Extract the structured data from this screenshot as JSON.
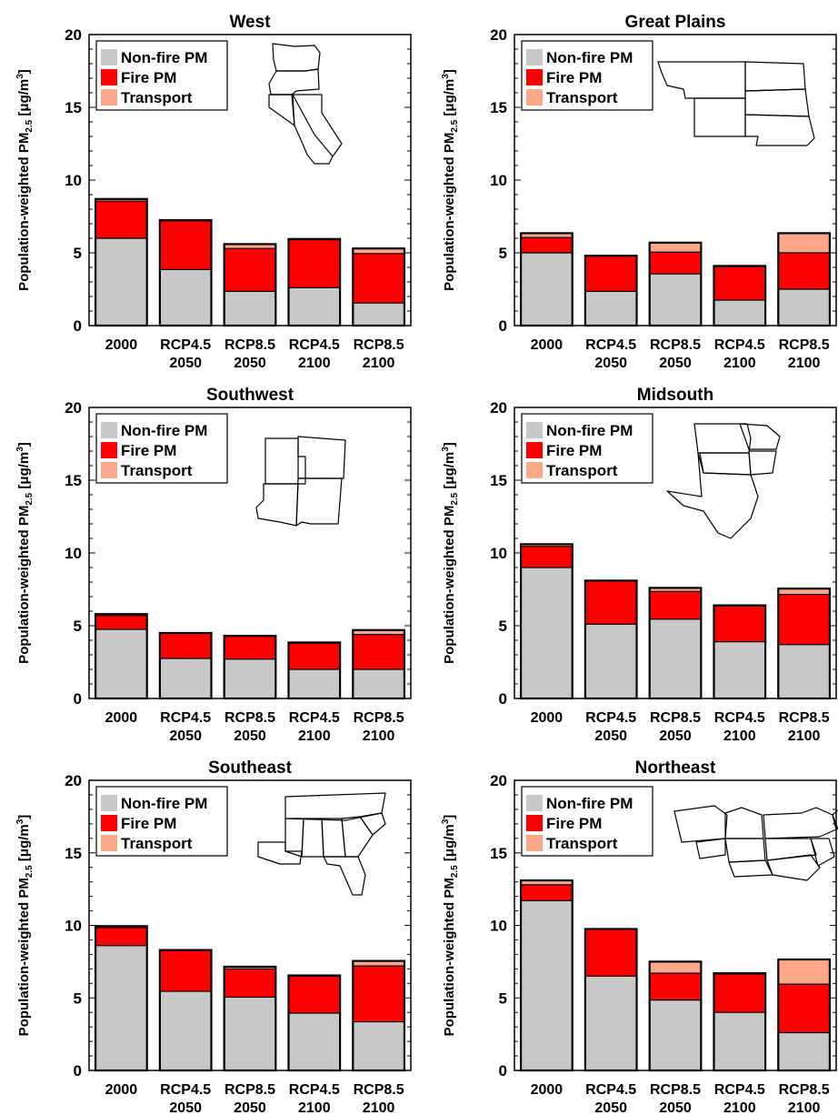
{
  "figure": {
    "ylabel_main": "Population-weighted PM",
    "ylabel_sub": "2.5",
    "ylabel_unit": " [μg/m",
    "ylabel_sup": "3",
    "ylabel_close": "]",
    "legend": [
      "Non-fire PM",
      "Fire PM",
      "Transport"
    ],
    "colors": {
      "nonfire": "#c8c8c8",
      "fire": "#ff0000",
      "transport": "#fca68a",
      "axis": "#000000"
    },
    "region_map_icons": [
      "west-map-icon",
      "great-plains-map-icon",
      "southwest-map-icon",
      "midsouth-map-icon",
      "southeast-map-icon",
      "northeast-map-icon"
    ]
  },
  "chart_data": [
    {
      "type": "bar",
      "stacked": true,
      "title": "West",
      "categories": [
        [
          "2000"
        ],
        [
          "RCP4.5",
          "2050"
        ],
        [
          "RCP8.5",
          "2050"
        ],
        [
          "RCP4.5",
          "2100"
        ],
        [
          "RCP8.5",
          "2100"
        ]
      ],
      "series": [
        {
          "name": "Non-fire PM",
          "values": [
            6.0,
            3.85,
            2.35,
            2.6,
            1.55
          ]
        },
        {
          "name": "Fire PM",
          "values": [
            2.55,
            3.35,
            2.95,
            3.3,
            3.4
          ]
        },
        {
          "name": "Transport",
          "values": [
            0.15,
            0.05,
            0.3,
            0.05,
            0.35
          ]
        }
      ],
      "ylim": [
        0,
        20
      ],
      "yticks": [
        0,
        5,
        10,
        15,
        20
      ],
      "legend_position": "top-left"
    },
    {
      "type": "bar",
      "stacked": true,
      "title": "Great Plains",
      "categories": [
        [
          "2000"
        ],
        [
          "RCP4.5",
          "2050"
        ],
        [
          "RCP8.5",
          "2050"
        ],
        [
          "RCP4.5",
          "2100"
        ],
        [
          "RCP8.5",
          "2100"
        ]
      ],
      "series": [
        {
          "name": "Non-fire PM",
          "values": [
            5.0,
            2.35,
            3.55,
            1.75,
            2.5
          ]
        },
        {
          "name": "Fire PM",
          "values": [
            1.05,
            2.45,
            1.5,
            2.3,
            2.5
          ]
        },
        {
          "name": "Transport",
          "values": [
            0.3,
            0.0,
            0.65,
            0.05,
            1.35
          ]
        }
      ],
      "ylim": [
        0,
        20
      ],
      "yticks": [
        0,
        5,
        10,
        15,
        20
      ],
      "legend_position": "top-left"
    },
    {
      "type": "bar",
      "stacked": true,
      "title": "Southwest",
      "categories": [
        [
          "2000"
        ],
        [
          "RCP4.5",
          "2050"
        ],
        [
          "RCP8.5",
          "2050"
        ],
        [
          "RCP4.5",
          "2100"
        ],
        [
          "RCP8.5",
          "2100"
        ]
      ],
      "series": [
        {
          "name": "Non-fire PM",
          "values": [
            4.75,
            2.75,
            2.7,
            2.0,
            2.0
          ]
        },
        {
          "name": "Fire PM",
          "values": [
            0.95,
            1.75,
            1.6,
            1.8,
            2.4
          ]
        },
        {
          "name": "Transport",
          "values": [
            0.1,
            0.0,
            0.0,
            0.05,
            0.3
          ]
        }
      ],
      "ylim": [
        0,
        20
      ],
      "yticks": [
        0,
        5,
        10,
        15,
        20
      ],
      "legend_position": "top-left"
    },
    {
      "type": "bar",
      "stacked": true,
      "title": "Midsouth",
      "categories": [
        [
          "2000"
        ],
        [
          "RCP4.5",
          "2050"
        ],
        [
          "RCP8.5",
          "2050"
        ],
        [
          "RCP4.5",
          "2100"
        ],
        [
          "RCP8.5",
          "2100"
        ]
      ],
      "series": [
        {
          "name": "Non-fire PM",
          "values": [
            9.0,
            5.1,
            5.45,
            3.9,
            3.7
          ]
        },
        {
          "name": "Fire PM",
          "values": [
            1.45,
            3.0,
            1.9,
            2.45,
            3.45
          ]
        },
        {
          "name": "Transport",
          "values": [
            0.15,
            0.0,
            0.25,
            0.05,
            0.4
          ]
        }
      ],
      "ylim": [
        0,
        20
      ],
      "yticks": [
        0,
        5,
        10,
        15,
        20
      ],
      "legend_position": "top-left"
    },
    {
      "type": "bar",
      "stacked": true,
      "title": "Southeast",
      "categories": [
        [
          "2000"
        ],
        [
          "RCP4.5",
          "2050"
        ],
        [
          "RCP8.5",
          "2050"
        ],
        [
          "RCP4.5",
          "2100"
        ],
        [
          "RCP8.5",
          "2100"
        ]
      ],
      "series": [
        {
          "name": "Non-fire PM",
          "values": [
            8.6,
            5.45,
            5.05,
            3.95,
            3.35
          ]
        },
        {
          "name": "Fire PM",
          "values": [
            1.25,
            2.85,
            1.95,
            2.55,
            3.85
          ]
        },
        {
          "name": "Transport",
          "values": [
            0.1,
            0.0,
            0.15,
            0.05,
            0.35
          ]
        }
      ],
      "ylim": [
        0,
        20
      ],
      "yticks": [
        0,
        5,
        10,
        15,
        20
      ],
      "legend_position": "top-left"
    },
    {
      "type": "bar",
      "stacked": true,
      "title": "Northeast",
      "categories": [
        [
          "2000"
        ],
        [
          "RCP4.5",
          "2050"
        ],
        [
          "RCP8.5",
          "2050"
        ],
        [
          "RCP4.5",
          "2100"
        ],
        [
          "RCP8.5",
          "2100"
        ]
      ],
      "series": [
        {
          "name": "Non-fire PM",
          "values": [
            11.7,
            6.5,
            4.85,
            4.0,
            2.6
          ]
        },
        {
          "name": "Fire PM",
          "values": [
            1.1,
            3.25,
            1.85,
            2.65,
            3.35
          ]
        },
        {
          "name": "Transport",
          "values": [
            0.3,
            0.0,
            0.8,
            0.05,
            1.7
          ]
        }
      ],
      "ylim": [
        0,
        20
      ],
      "yticks": [
        0,
        5,
        10,
        15,
        20
      ],
      "legend_position": "top-left"
    }
  ]
}
